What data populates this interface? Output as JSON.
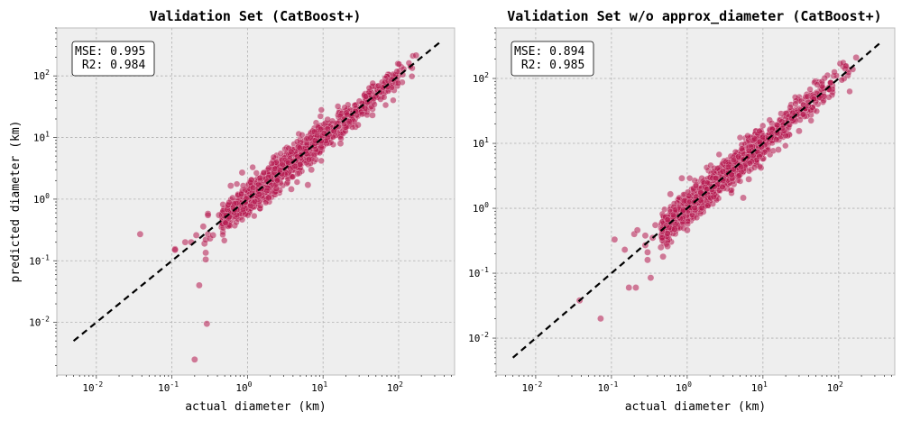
{
  "chart_data": [
    {
      "type": "scatter",
      "title": "Validation Set (CatBoost+)",
      "xlabel": "actual diameter (km)",
      "ylabel": "predicted diameter (km)",
      "xscale": "log",
      "yscale": "log",
      "xlim": [
        0.003,
        550
      ],
      "ylim": [
        0.0014,
        600
      ],
      "x_ticks": [
        {
          "base": "10",
          "exp": "-2"
        },
        {
          "base": "10",
          "exp": "-1"
        },
        {
          "base": "10",
          "exp": "0"
        },
        {
          "base": "10",
          "exp": "1"
        },
        {
          "base": "10",
          "exp": "2"
        }
      ],
      "y_ticks": [
        {
          "base": "10",
          "exp": "-2"
        },
        {
          "base": "10",
          "exp": "-1"
        },
        {
          "base": "10",
          "exp": "0"
        },
        {
          "base": "10",
          "exp": "1"
        },
        {
          "base": "10",
          "exp": "2"
        }
      ],
      "grid": true,
      "reference_line": {
        "x": [
          0.005,
          350
        ],
        "y": [
          0.005,
          350
        ],
        "style": "dashed",
        "color": "#000000"
      },
      "annotation_lines": [
        "MSE: 0.995",
        " R2: 0.984"
      ],
      "annotation_position": "top-left",
      "point_color": "#b5174f",
      "outliers": [
        [
          0.038,
          0.27
        ],
        [
          0.11,
          0.155
        ],
        [
          0.11,
          0.15
        ],
        [
          0.15,
          0.2
        ],
        [
          0.18,
          0.2
        ],
        [
          0.21,
          0.26
        ],
        [
          0.23,
          0.04
        ],
        [
          0.2,
          0.0025
        ],
        [
          0.29,
          0.0095
        ],
        [
          0.28,
          0.135
        ],
        [
          0.28,
          0.105
        ],
        [
          0.27,
          0.19
        ],
        [
          0.26,
          0.36
        ],
        [
          0.28,
          0.22
        ],
        [
          0.3,
          0.27
        ],
        [
          0.32,
          0.23
        ],
        [
          0.35,
          0.26
        ],
        [
          0.3,
          0.58
        ],
        [
          0.3,
          0.55
        ],
        [
          0.42,
          0.55
        ],
        [
          0.6,
          1.65
        ],
        [
          0.85,
          2.7
        ],
        [
          1.9,
          1.05
        ],
        [
          3.8,
          1.45
        ],
        [
          6.3,
          1.7
        ],
        [
          7.0,
          3.0
        ],
        [
          11.5,
          19.5
        ],
        [
          17.0,
          8.0
        ],
        [
          29.0,
          16.0
        ],
        [
          45.0,
          23.0
        ],
        [
          170.0,
          215.0
        ]
      ],
      "bulk": {
        "x_min": 0.45,
        "x_max": 170,
        "count": 1300,
        "spread": 0.12,
        "seed": 11
      }
    },
    {
      "type": "scatter",
      "title": "Validation Set w/o approx_diameter (CatBoost+)",
      "xlabel": "actual diameter (km)",
      "ylabel": "",
      "xscale": "log",
      "yscale": "log",
      "xlim": [
        0.003,
        550
      ],
      "ylim": [
        0.0027,
        600
      ],
      "x_ticks": [
        {
          "base": "10",
          "exp": "-2"
        },
        {
          "base": "10",
          "exp": "-1"
        },
        {
          "base": "10",
          "exp": "0"
        },
        {
          "base": "10",
          "exp": "1"
        },
        {
          "base": "10",
          "exp": "2"
        }
      ],
      "y_ticks": [
        {
          "base": "10",
          "exp": "-2"
        },
        {
          "base": "10",
          "exp": "-1"
        },
        {
          "base": "10",
          "exp": "0"
        },
        {
          "base": "10",
          "exp": "1"
        },
        {
          "base": "10",
          "exp": "2"
        }
      ],
      "grid": true,
      "reference_line": {
        "x": [
          0.005,
          350
        ],
        "y": [
          0.005,
          350
        ],
        "style": "dashed",
        "color": "#000000"
      },
      "annotation_lines": [
        "MSE: 0.894",
        " R2: 0.985"
      ],
      "annotation_position": "top-left",
      "point_color": "#b5174f",
      "outliers": [
        [
          0.038,
          0.038
        ],
        [
          0.072,
          0.02
        ],
        [
          0.11,
          0.33
        ],
        [
          0.15,
          0.23
        ],
        [
          0.17,
          0.06
        ],
        [
          0.21,
          0.06
        ],
        [
          0.2,
          0.4
        ],
        [
          0.22,
          0.46
        ],
        [
          0.28,
          0.38
        ],
        [
          0.28,
          0.27
        ],
        [
          0.3,
          0.21
        ],
        [
          0.3,
          0.16
        ],
        [
          0.33,
          0.085
        ],
        [
          0.35,
          0.35
        ],
        [
          0.38,
          0.55
        ],
        [
          0.45,
          0.25
        ],
        [
          0.48,
          0.18
        ],
        [
          0.55,
          0.26
        ],
        [
          0.6,
          1.65
        ],
        [
          0.68,
          0.48
        ],
        [
          0.85,
          2.9
        ],
        [
          1.0,
          0.46
        ],
        [
          5.5,
          1.45
        ],
        [
          6.5,
          2.8
        ],
        [
          16.0,
          8.0
        ],
        [
          30.0,
          15.5
        ],
        [
          170.0,
          210.0
        ]
      ],
      "bulk": {
        "x_min": 0.45,
        "x_max": 170,
        "count": 1300,
        "spread": 0.115,
        "seed": 23
      }
    }
  ]
}
